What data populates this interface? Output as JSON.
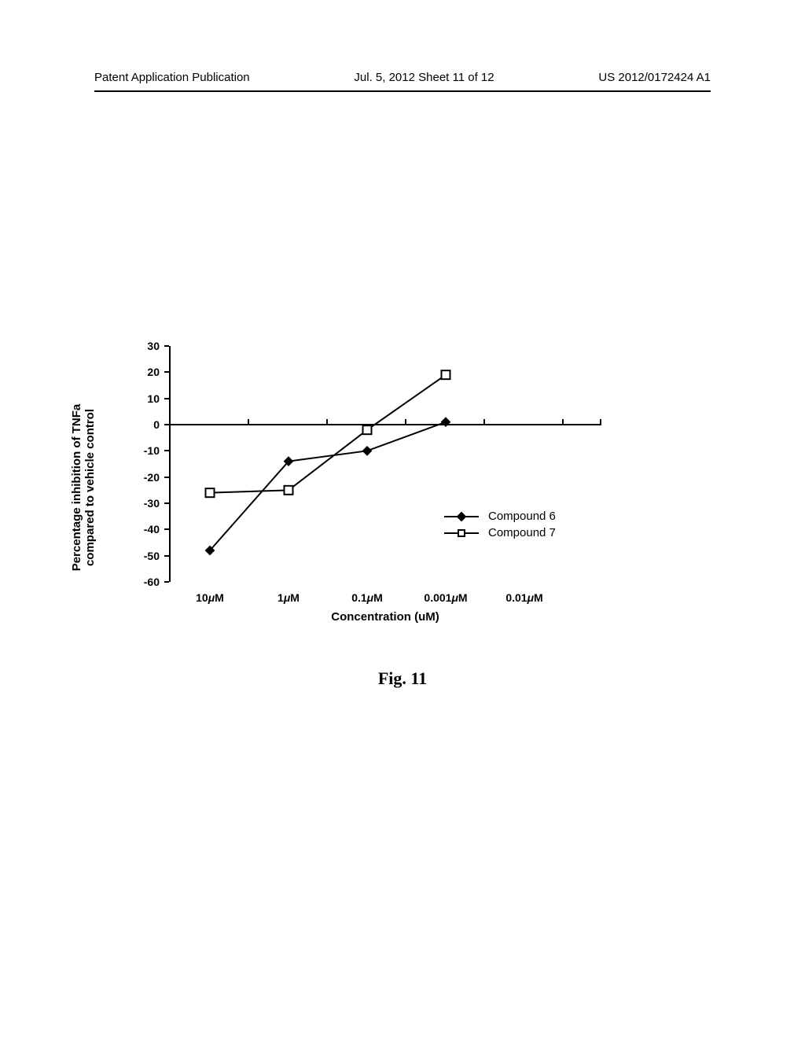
{
  "header": {
    "left": "Patent Application Publication",
    "center": "Jul. 5, 2012  Sheet 11 of 12",
    "right": "US 2012/0172424 A1"
  },
  "chart": {
    "type": "line",
    "y_label_line1": "Percentage inhibition of TNFa",
    "y_label_line2": "compared to vehicle control",
    "x_label": "Concentration (uM)",
    "ylim": [
      -60,
      30
    ],
    "ytick_step": 10,
    "yticks": [
      30,
      20,
      10,
      0,
      -10,
      -20,
      -30,
      -40,
      -50,
      -60
    ],
    "x_categories": [
      "10μM",
      "1μM",
      "0.1μM",
      "0.001μM",
      "0.01μM"
    ],
    "zero_at": 0,
    "series": [
      {
        "name": "Compound 6",
        "marker": "diamond-filled",
        "color": "#000000",
        "values": [
          -48,
          -14,
          -10,
          1,
          null
        ]
      },
      {
        "name": "Compound 7",
        "marker": "square-open",
        "color": "#000000",
        "values": [
          -26,
          -25,
          -2,
          19,
          null
        ]
      }
    ],
    "background_color": "#ffffff",
    "line_width": 2,
    "marker_size": 9,
    "title_fontsize": 15,
    "label_fontsize": 15,
    "tick_fontsize": 14
  },
  "legend": {
    "items": [
      "Compound 6",
      "Compound 7"
    ]
  },
  "caption": "Fig. 11"
}
